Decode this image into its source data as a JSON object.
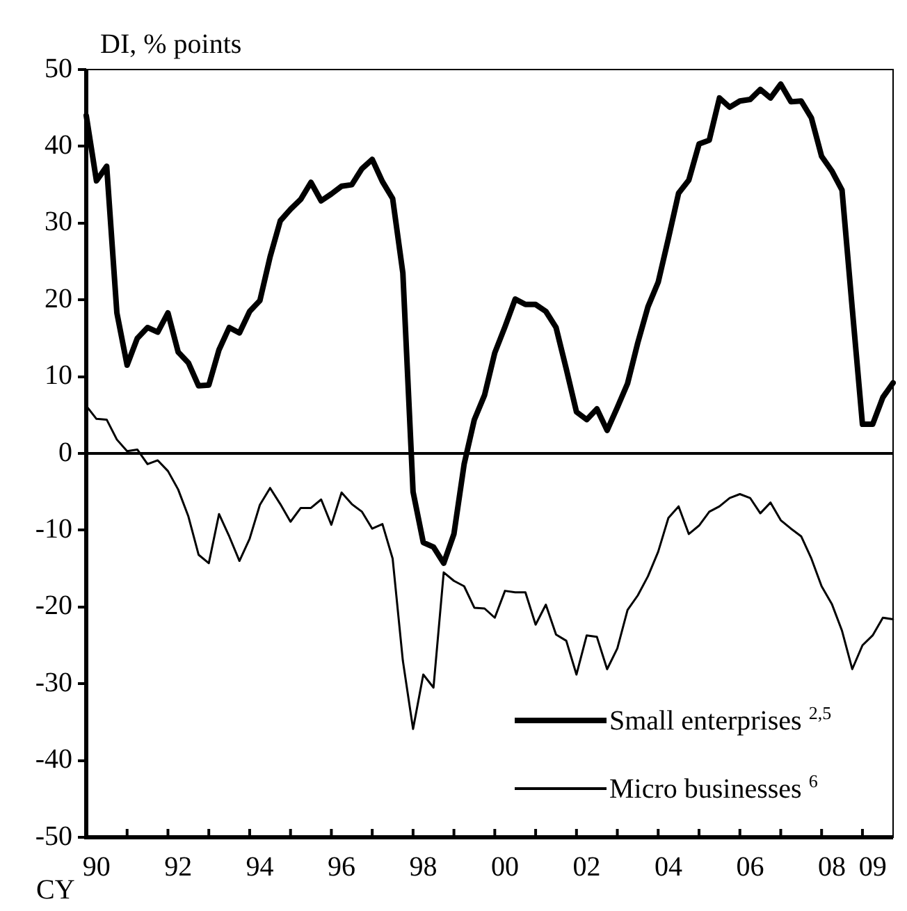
{
  "chart_data": {
    "type": "line",
    "ylabel": "DI, % points",
    "xlabel": "CY",
    "categories": [
      null,
      "90",
      null,
      null,
      null,
      null,
      null,
      null,
      null,
      "92",
      null,
      null,
      null,
      null,
      null,
      null,
      null,
      "94",
      null,
      null,
      null,
      null,
      null,
      null,
      null,
      "96",
      null,
      null,
      null,
      null,
      null,
      null,
      null,
      "98",
      null,
      null,
      null,
      null,
      null,
      null,
      null,
      "00",
      null,
      null,
      null,
      null,
      null,
      null,
      null,
      "02",
      null,
      null,
      null,
      null,
      null,
      null,
      null,
      "04",
      null,
      null,
      null,
      null,
      null,
      null,
      null,
      "06",
      null,
      null,
      null,
      null,
      null,
      null,
      null,
      "08",
      null,
      null,
      null,
      "09",
      null,
      null
    ],
    "series": [
      {
        "name": "Small enterprises $^{2,5}$",
        "color": "#000000",
        "values": [
          44,
          35.5,
          37.4,
          18.3,
          11.5,
          15,
          16.4,
          15.8,
          18.3,
          13.2,
          11.8,
          8.8,
          8.9,
          13.5,
          16.4,
          15.7,
          18.5,
          19.9,
          25.6,
          30.3,
          31.8,
          33.1,
          35.3,
          32.9,
          33.8,
          34.8,
          35,
          37.1,
          38.3,
          35.4,
          33.2,
          23.5,
          -5,
          -11.6,
          -12.2,
          -14.3,
          -10.5,
          -1.4,
          4.4,
          7.6,
          13.1,
          16.5,
          20.1,
          19.4,
          19.4,
          18.5,
          16.4,
          11,
          5.4,
          4.4,
          5.8,
          3,
          6,
          9.1,
          14.4,
          19.1,
          22.3,
          28,
          33.9,
          35.6,
          40.3,
          40.8,
          46.3,
          45.1,
          45.9,
          46.1,
          47.4,
          46.3,
          48.1,
          45.8,
          45.9,
          43.7,
          38.7,
          36.8,
          34.3,
          18.9,
          3.8,
          3.8,
          7.3,
          9.2
        ]
      },
      {
        "name": "Micro businesses $^{6}$",
        "color": "#000000",
        "values": [
          6.2,
          4.5,
          4.4,
          1.8,
          0.3,
          0.5,
          -1.4,
          -0.9,
          -2.3,
          -4.7,
          -8.2,
          -13.2,
          -14.3,
          -7.9,
          -10.8,
          -14,
          -11.1,
          -6.7,
          -4.5,
          -6.6,
          -8.9,
          -7.1,
          -7.1,
          -6,
          -9.3,
          -5.1,
          -6.6,
          -7.6,
          -9.8,
          -9.2,
          -13.7,
          -27,
          -35.9,
          -28.8,
          -30.5,
          -15.5,
          -16.6,
          -17.3,
          -20.1,
          -20.2,
          -21.4,
          -17.9,
          -18.1,
          -18.1,
          -22.3,
          -19.7,
          -23.6,
          -24.4,
          -28.8,
          -23.7,
          -23.9,
          -28.1,
          -25.4,
          -20.4,
          -18.5,
          -16,
          -12.8,
          -8.4,
          -6.9,
          -10.5,
          -9.4,
          -7.6,
          -6.9,
          -5.8,
          -5.3,
          -5.8,
          -7.8,
          -6.4,
          -8.7,
          -9.8,
          -10.8,
          -13.7,
          -17.3,
          -19.6,
          -23.1,
          -28.1,
          -25,
          -23.7,
          -21.4,
          -21.6
        ]
      }
    ],
    "ylim": [
      -50,
      50
    ],
    "yticks": [
      -50,
      -40,
      -30,
      -20,
      -10,
      0,
      10,
      20,
      30,
      40,
      50
    ],
    "ref_lines": [
      {
        "axis": "y",
        "value": 0,
        "color": "#000000"
      }
    ],
    "legend": "bottom right",
    "marker": "none",
    "line_style": "solid"
  }
}
